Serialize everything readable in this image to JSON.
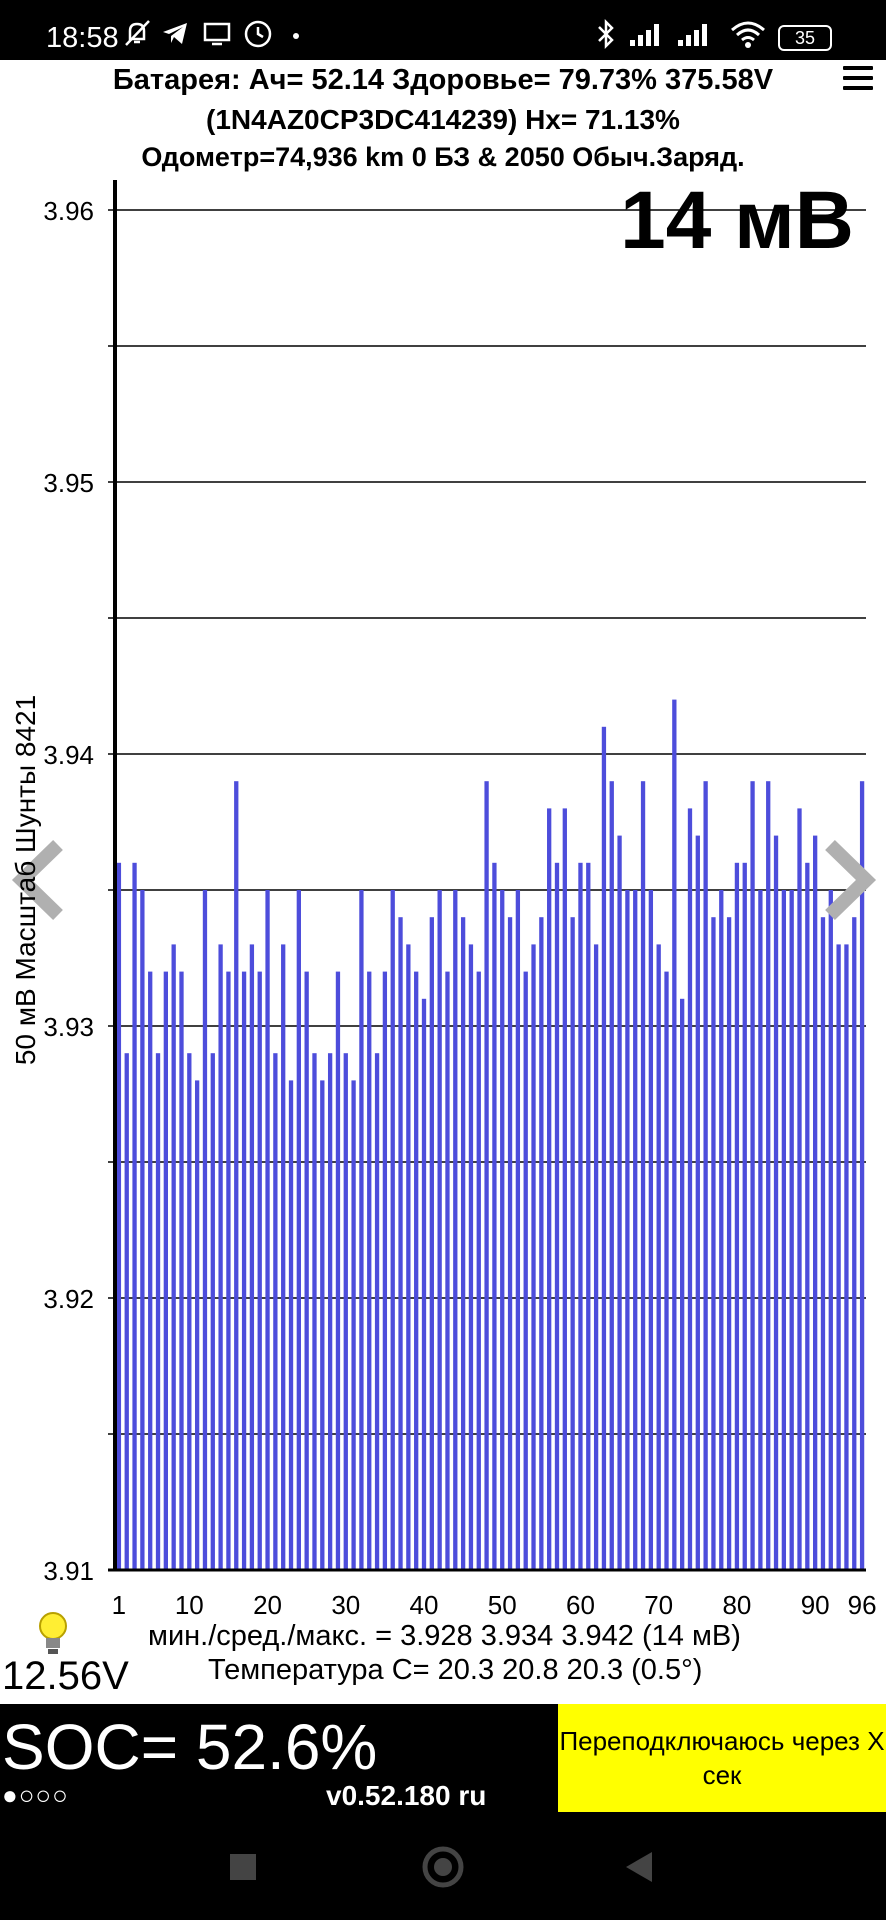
{
  "status_bar": {
    "time": "18:58",
    "battery_level": "35",
    "icons": [
      "mute-bell-icon",
      "telegram-icon",
      "cast-icon",
      "clock-icon",
      "bluetooth-icon",
      "signal-icon",
      "signal-icon",
      "wifi-icon",
      "battery-icon"
    ]
  },
  "header": {
    "line1": "Батарея:  Ач= 52.14  Здоровье= 79.73%   375.58V",
    "line2": "(1N4AZ0CP3DC414239)   Hx= 71.13%",
    "line3": "Одометр=74,936 km 0 БЗ & 2050 Обыч.Заряд."
  },
  "big_delta": "14 мВ",
  "side_label": "50 мВ Масштаб  Шунты 8421",
  "stats": {
    "line1": "мин./сред./макс. = 3.928 3.934 3.942  (14 мВ)",
    "line2": "Температура С= 20.3  20.8  20.3  (0.5°)"
  },
  "aux_voltage": "12.56V",
  "bottom": {
    "soc": "SOC= 52.6%",
    "dots": "●○○○",
    "version": "v0.52.180 ru",
    "reconnect": "Переподключаюсь через X сек"
  },
  "colors": {
    "bar": "#4d4ddb",
    "accent_yellow": "#ffff00",
    "background": "#ffffff",
    "chrome": "#000000"
  },
  "chart_data": {
    "type": "bar",
    "xlabel": "",
    "ylabel": "",
    "ylim": [
      3.91,
      3.96
    ],
    "y_ticks": [
      "3.91",
      "3.92",
      "3.93",
      "3.94",
      "3.95",
      "3.96"
    ],
    "x_ticks": [
      "1",
      "10",
      "20",
      "30",
      "40",
      "50",
      "60",
      "70",
      "80",
      "90",
      "96"
    ],
    "grid": true,
    "categories": [
      1,
      2,
      3,
      4,
      5,
      6,
      7,
      8,
      9,
      10,
      11,
      12,
      13,
      14,
      15,
      16,
      17,
      18,
      19,
      20,
      21,
      22,
      23,
      24,
      25,
      26,
      27,
      28,
      29,
      30,
      31,
      32,
      33,
      34,
      35,
      36,
      37,
      38,
      39,
      40,
      41,
      42,
      43,
      44,
      45,
      46,
      47,
      48,
      49,
      50,
      51,
      52,
      53,
      54,
      55,
      56,
      57,
      58,
      59,
      60,
      61,
      62,
      63,
      64,
      65,
      66,
      67,
      68,
      69,
      70,
      71,
      72,
      73,
      74,
      75,
      76,
      77,
      78,
      79,
      80,
      81,
      82,
      83,
      84,
      85,
      86,
      87,
      88,
      89,
      90,
      91,
      92,
      93,
      94,
      95,
      96
    ],
    "values": [
      3.936,
      3.929,
      3.936,
      3.935,
      3.932,
      3.929,
      3.932,
      3.933,
      3.932,
      3.929,
      3.928,
      3.935,
      3.929,
      3.933,
      3.932,
      3.939,
      3.932,
      3.933,
      3.932,
      3.935,
      3.929,
      3.933,
      3.928,
      3.935,
      3.932,
      3.929,
      3.928,
      3.929,
      3.932,
      3.929,
      3.928,
      3.935,
      3.932,
      3.929,
      3.932,
      3.935,
      3.934,
      3.933,
      3.932,
      3.931,
      3.934,
      3.935,
      3.932,
      3.935,
      3.934,
      3.933,
      3.932,
      3.939,
      3.936,
      3.935,
      3.934,
      3.935,
      3.932,
      3.933,
      3.934,
      3.938,
      3.936,
      3.938,
      3.934,
      3.936,
      3.936,
      3.933,
      3.941,
      3.939,
      3.937,
      3.935,
      3.935,
      3.939,
      3.935,
      3.933,
      3.932,
      3.942,
      3.931,
      3.938,
      3.937,
      3.939,
      3.934,
      3.935,
      3.934,
      3.936,
      3.936,
      3.939,
      3.935,
      3.939,
      3.937,
      3.935,
      3.935,
      3.938,
      3.936,
      3.937,
      3.934,
      3.935,
      3.933,
      3.933,
      3.934,
      3.939
    ]
  }
}
